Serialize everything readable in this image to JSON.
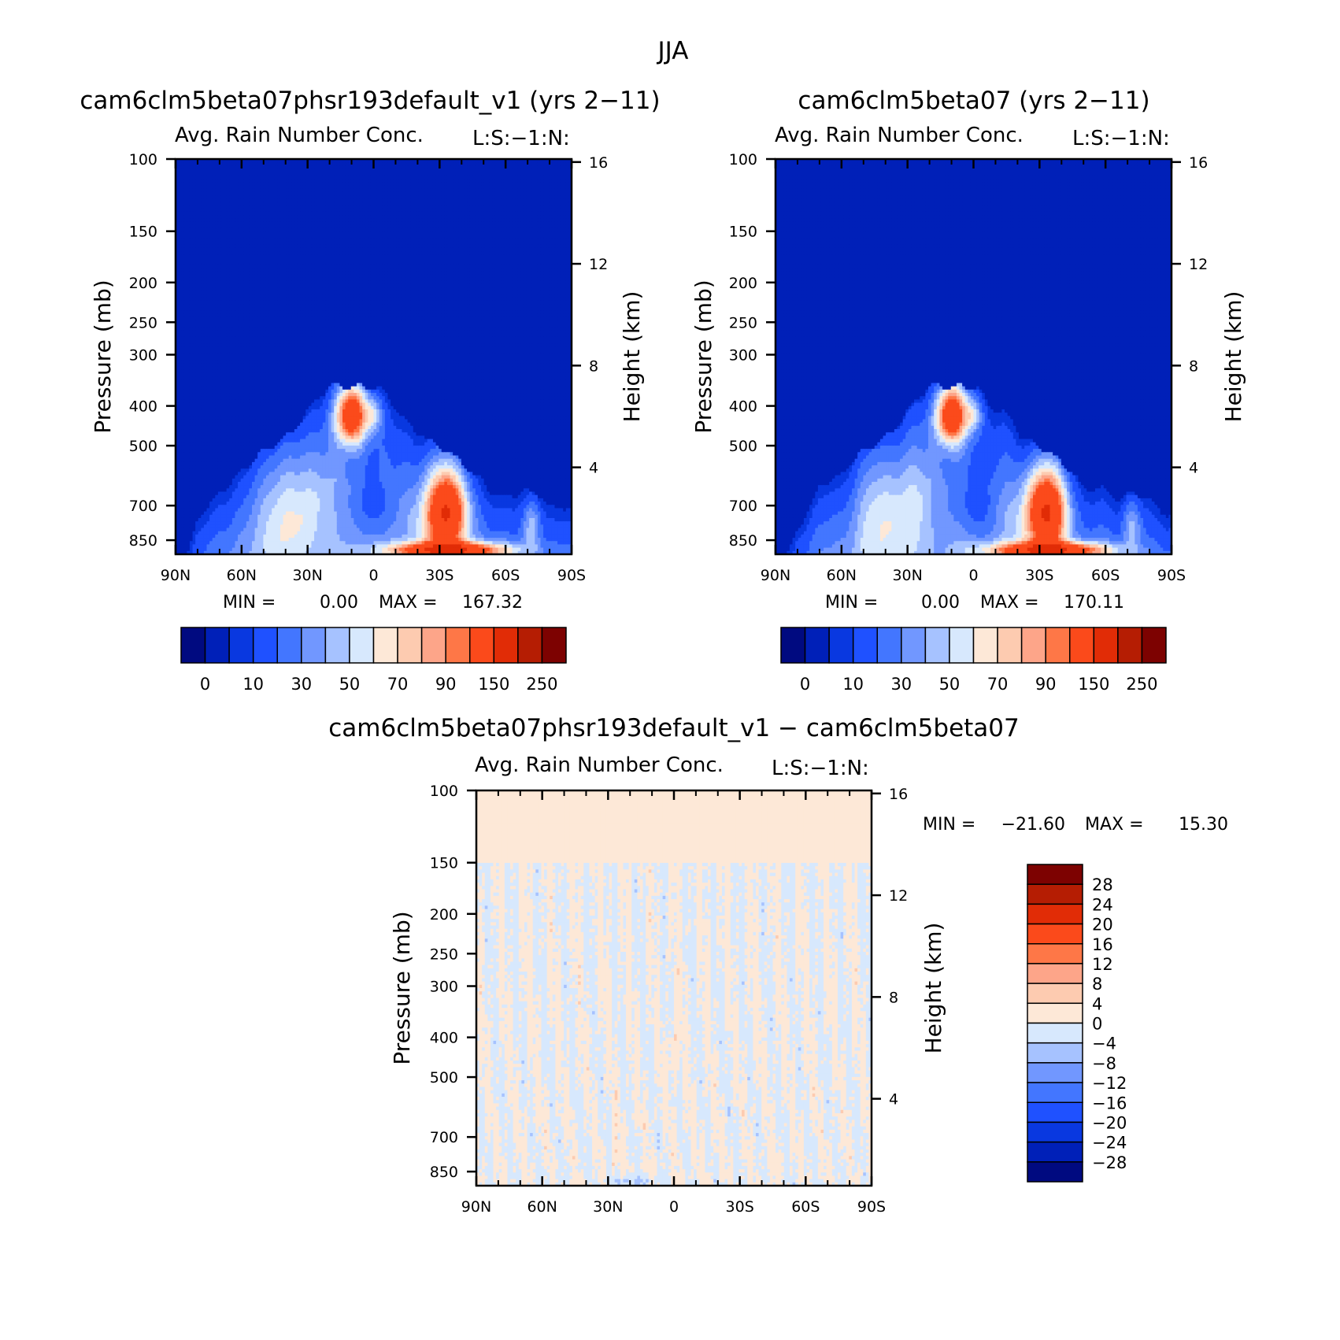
{
  "figure": {
    "title": "JJA"
  },
  "colors": {
    "full_scale": [
      "#000a80",
      "#0020b8",
      "#0938e0",
      "#1f51ff",
      "#4376ff",
      "#7197ff",
      "#a6c2ff",
      "#d7e8fd",
      "#fde8d7",
      "#fdcbb0",
      "#fda589",
      "#fe7747",
      "#fb4a1b",
      "#e12c06",
      "#b51d03",
      "#7d0201"
    ],
    "diff_scale": [
      "#000a80",
      "#0020b8",
      "#0938e0",
      "#1f51ff",
      "#4376ff",
      "#7197ff",
      "#a6c2ff",
      "#d7e8fd",
      "#fde8d7",
      "#fdcbb0",
      "#fda589",
      "#fe7747",
      "#fb4a1b",
      "#e12c06",
      "#b51d03",
      "#7d0201"
    ]
  },
  "chart_data": [
    {
      "type": "heatmap",
      "panel": "top-left",
      "title": "cam6clm5beta07phsr193default_v1 (yrs 2−11)",
      "variable": "Avg. Rain Number Conc.",
      "code": "L:S:−1:N:",
      "ylabel": "Pressure (mb)",
      "ylabel_right": "Height (km)",
      "xticks": [
        "90N",
        "60N",
        "30N",
        "0",
        "30S",
        "60S",
        "90S"
      ],
      "yticks": [
        "100",
        "150",
        "200",
        "250",
        "300",
        "400",
        "500",
        "700",
        "850"
      ],
      "yticks_right": [
        "16",
        "12",
        "8",
        "4"
      ],
      "stats": {
        "min_label": "MIN =",
        "min": "0.00",
        "max_label": "MAX =",
        "max": "167.32"
      },
      "colorbar": {
        "orientation": "horizontal",
        "labels": [
          "0",
          "10",
          "30",
          "50",
          "70",
          "90",
          "150",
          "250"
        ]
      },
      "levels": [
        0,
        5,
        10,
        20,
        30,
        40,
        50,
        60,
        70,
        80,
        90,
        100,
        150,
        200,
        250
      ],
      "variant": 0
    },
    {
      "type": "heatmap",
      "panel": "top-right",
      "title": "cam6clm5beta07 (yrs 2−11)",
      "variable": "Avg. Rain Number Conc.",
      "code": "L:S:−1:N:",
      "ylabel": "Pressure (mb)",
      "ylabel_right": "Height (km)",
      "xticks": [
        "90N",
        "60N",
        "30N",
        "0",
        "30S",
        "60S",
        "90S"
      ],
      "yticks": [
        "100",
        "150",
        "200",
        "250",
        "300",
        "400",
        "500",
        "700",
        "850"
      ],
      "yticks_right": [
        "16",
        "12",
        "8",
        "4"
      ],
      "stats": {
        "min_label": "MIN =",
        "min": "0.00",
        "max_label": "MAX =",
        "max": "170.11"
      },
      "colorbar": {
        "orientation": "horizontal",
        "labels": [
          "0",
          "10",
          "30",
          "50",
          "70",
          "90",
          "150",
          "250"
        ]
      },
      "levels": [
        0,
        5,
        10,
        20,
        30,
        40,
        50,
        60,
        70,
        80,
        90,
        100,
        150,
        200,
        250
      ],
      "variant": 1
    },
    {
      "type": "heatmap",
      "panel": "bottom",
      "title": "cam6clm5beta07phsr193default_v1 − cam6clm5beta07",
      "variable": "Avg. Rain Number Conc.",
      "code": "L:S:−1:N:",
      "ylabel": "Pressure (mb)",
      "ylabel_right": "Height (km)",
      "xticks": [
        "90N",
        "60N",
        "30N",
        "0",
        "30S",
        "60S",
        "90S"
      ],
      "yticks": [
        "100",
        "150",
        "200",
        "250",
        "300",
        "400",
        "500",
        "700",
        "850"
      ],
      "yticks_right": [
        "16",
        "12",
        "8",
        "4"
      ],
      "stats": {
        "min_label": "MIN =",
        "min": "−21.60",
        "max_label": "MAX =",
        "max": "15.30"
      },
      "colorbar": {
        "orientation": "vertical",
        "labels": [
          "28",
          "24",
          "20",
          "16",
          "12",
          "8",
          "4",
          "0",
          "−4",
          "−8",
          "−12",
          "−16",
          "−20",
          "−24",
          "−28"
        ]
      },
      "levels": [
        -28,
        -24,
        -20,
        -16,
        -12,
        -8,
        -4,
        0,
        4,
        8,
        12,
        16,
        20,
        24,
        28
      ]
    }
  ]
}
